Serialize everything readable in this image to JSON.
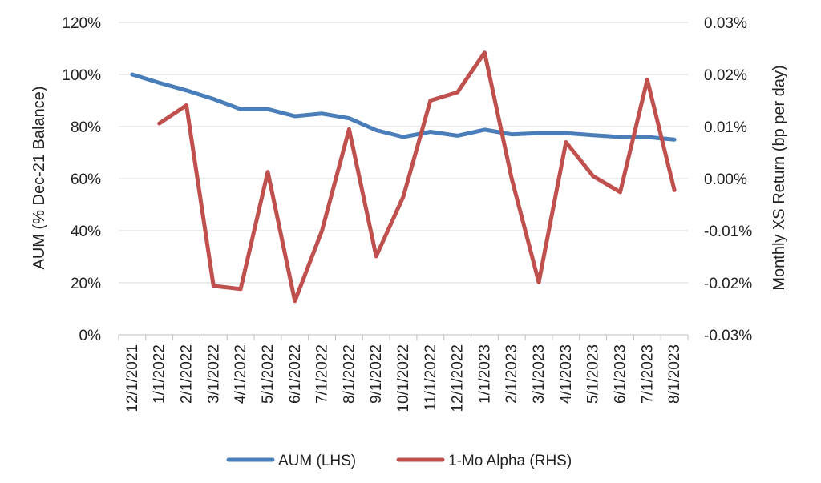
{
  "chart_data": {
    "type": "line",
    "x": [
      "12/1/2021",
      "1/1/2022",
      "2/1/2022",
      "3/1/2022",
      "4/1/2022",
      "5/1/2022",
      "6/1/2022",
      "7/1/2022",
      "8/1/2022",
      "9/1/2022",
      "10/1/2022",
      "11/1/2022",
      "12/1/2022",
      "1/1/2023",
      "2/1/2023",
      "3/1/2023",
      "4/1/2023",
      "5/1/2023",
      "6/1/2023",
      "7/1/2023",
      "8/1/2023"
    ],
    "series": [
      {
        "name": "AUM (LHS)",
        "axis": "left",
        "color": "#4A7EBB",
        "values": [
          1.0,
          0.968,
          0.939,
          0.906,
          0.867,
          0.867,
          0.84,
          0.85,
          0.832,
          0.786,
          0.76,
          0.78,
          0.765,
          0.788,
          0.77,
          0.775,
          0.775,
          0.767,
          0.76,
          0.76,
          0.75
        ]
      },
      {
        "name": "1-Mo Alpha (RHS)",
        "axis": "right",
        "color": "#C0504D",
        "values": [
          null,
          0.000106,
          0.000141,
          -0.000206,
          -0.000212,
          1.3e-05,
          -0.000235,
          -0.0001,
          9.5e-05,
          -0.000149,
          -3.5e-05,
          0.00015,
          0.000166,
          0.000242,
          0.0,
          -0.000199,
          7e-05,
          5e-06,
          -2.6e-05,
          0.00019,
          -2.2e-05
        ]
      }
    ],
    "y_left": {
      "label": "AUM (% Dec-21 Balance)",
      "lim": [
        0,
        1.2
      ],
      "ticks": [
        0,
        0.2,
        0.4,
        0.6,
        0.8,
        1.0,
        1.2
      ],
      "tick_labels": [
        "0%",
        "20%",
        "40%",
        "60%",
        "80%",
        "100%",
        "120%"
      ]
    },
    "y_right": {
      "label": "Monthly XS Return (bp per day)",
      "lim": [
        -0.0003,
        0.0003
      ],
      "ticks": [
        -0.0003,
        -0.0002,
        -0.0001,
        0,
        0.0001,
        0.0002,
        0.0003
      ],
      "tick_labels": [
        "-0.03%",
        "-0.02%",
        "-0.01%",
        "0.00%",
        "0.01%",
        "0.02%",
        "0.03%"
      ]
    },
    "grid": "horizontal",
    "legend": "bottom"
  }
}
